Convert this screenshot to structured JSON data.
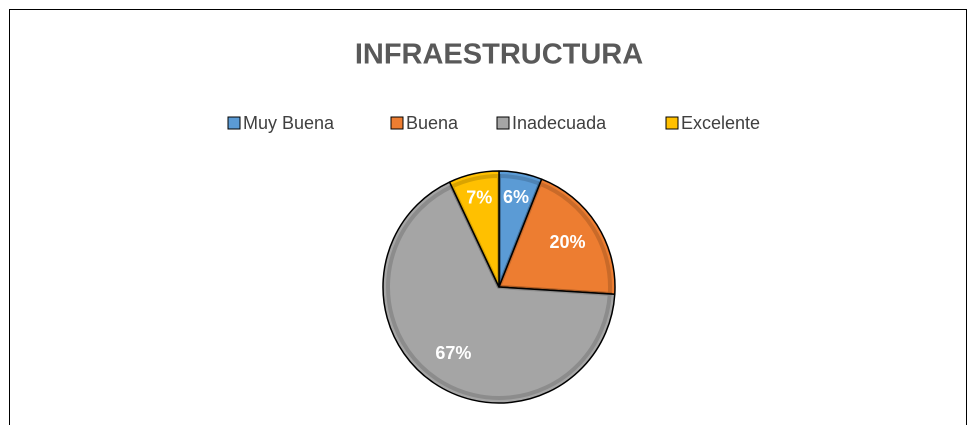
{
  "chart_data": {
    "type": "pie",
    "title": "INFRAESTRUCTURA",
    "categories": [
      "Muy Buena",
      "Buena",
      "Inadecuada",
      "Excelente"
    ],
    "values": [
      6,
      20,
      67,
      7
    ],
    "value_labels": [
      "6%",
      "20%",
      "67%",
      "7%"
    ],
    "colors": [
      "#5b9bd5",
      "#ed7d31",
      "#a5a5a5",
      "#ffc000"
    ],
    "legend": "top"
  }
}
